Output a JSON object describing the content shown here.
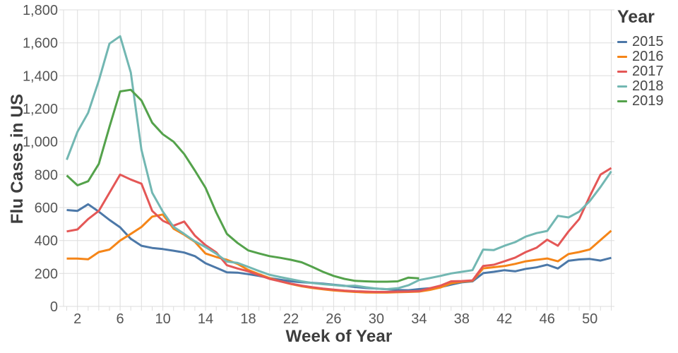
{
  "chart_data": {
    "type": "line",
    "title": "",
    "xlabel": "Week of Year",
    "ylabel": "Flu Cases in US",
    "legend_title": "Year",
    "legend_position": "right",
    "grid": true,
    "xlim": [
      0.7,
      52.3
    ],
    "ylim": [
      0,
      1800
    ],
    "x_ticks": [
      2,
      6,
      10,
      14,
      18,
      22,
      26,
      30,
      34,
      38,
      42,
      46,
      50
    ],
    "x_grid_step": 2,
    "x_minor_tick_step": 1,
    "y_ticks": [
      0,
      200,
      400,
      600,
      800,
      1000,
      1200,
      1400,
      1600,
      1800
    ],
    "y_tick_labels": [
      "0",
      "200",
      "400",
      "600",
      "800",
      "1,000",
      "1,200",
      "1,400",
      "1,600",
      "1,800"
    ],
    "x": [
      1,
      2,
      3,
      4,
      5,
      6,
      7,
      8,
      9,
      10,
      11,
      12,
      13,
      14,
      15,
      16,
      17,
      18,
      19,
      20,
      21,
      22,
      23,
      24,
      25,
      26,
      27,
      28,
      29,
      30,
      31,
      32,
      33,
      34,
      35,
      36,
      37,
      38,
      39,
      40,
      41,
      42,
      43,
      44,
      45,
      46,
      47,
      48,
      49,
      50,
      51,
      52
    ],
    "series": [
      {
        "name": "2015",
        "color": "#4c78a8",
        "values": [
          585,
          580,
          620,
          575,
          525,
          480,
          410,
          368,
          355,
          348,
          338,
          327,
          305,
          262,
          235,
          207,
          205,
          196,
          185,
          172,
          162,
          152,
          147,
          143,
          138,
          132,
          125,
          118,
          112,
          108,
          104,
          100,
          98,
          105,
          110,
          117,
          132,
          146,
          152,
          202,
          210,
          220,
          213,
          228,
          237,
          253,
          230,
          277,
          285,
          288,
          278,
          295
        ]
      },
      {
        "name": "2016",
        "color": "#f58518",
        "values": [
          290,
          290,
          286,
          330,
          345,
          400,
          440,
          482,
          545,
          558,
          472,
          435,
          392,
          321,
          300,
          283,
          258,
          221,
          196,
          172,
          152,
          136,
          122,
          112,
          104,
          97,
          92,
          88,
          85,
          84,
          84,
          86,
          88,
          90,
          100,
          115,
          140,
          150,
          155,
          231,
          238,
          245,
          258,
          274,
          283,
          291,
          274,
          318,
          330,
          346,
          403,
          460
        ]
      },
      {
        "name": "2017",
        "color": "#e45756",
        "values": [
          455,
          467,
          530,
          580,
          690,
          800,
          770,
          745,
          580,
          520,
          490,
          515,
          430,
          372,
          328,
          250,
          230,
          213,
          190,
          167,
          152,
          138,
          126,
          116,
          108,
          102,
          96,
          92,
          90,
          88,
          88,
          90,
          91,
          93,
          110,
          126,
          152,
          154,
          158,
          245,
          253,
          274,
          296,
          330,
          356,
          405,
          368,
          455,
          530,
          670,
          800,
          840
        ]
      },
      {
        "name": "2018",
        "color": "#72b7b2",
        "values": [
          890,
          1060,
          1175,
          1370,
          1595,
          1640,
          1420,
          950,
          690,
          575,
          483,
          440,
          395,
          360,
          320,
          272,
          264,
          240,
          215,
          192,
          178,
          165,
          152,
          142,
          135,
          130,
          124,
          126,
          116,
          108,
          105,
          110,
          128,
          160,
          172,
          185,
          200,
          210,
          220,
          345,
          342,
          368,
          390,
          424,
          445,
          458,
          550,
          540,
          575,
          640,
          725,
          820
        ]
      },
      {
        "name": "2019",
        "color": "#54a24b",
        "values": [
          795,
          735,
          760,
          865,
          1090,
          1305,
          1315,
          1250,
          1115,
          1045,
          1000,
          925,
          825,
          720,
          570,
          440,
          385,
          340,
          322,
          305,
          295,
          283,
          268,
          240,
          210,
          185,
          167,
          155,
          152,
          150,
          150,
          152,
          175,
          170
        ]
      }
    ],
    "colors": {
      "grid": "#dddddd",
      "tick_label": "#555555",
      "axis_title": "#3d3d3d"
    }
  }
}
